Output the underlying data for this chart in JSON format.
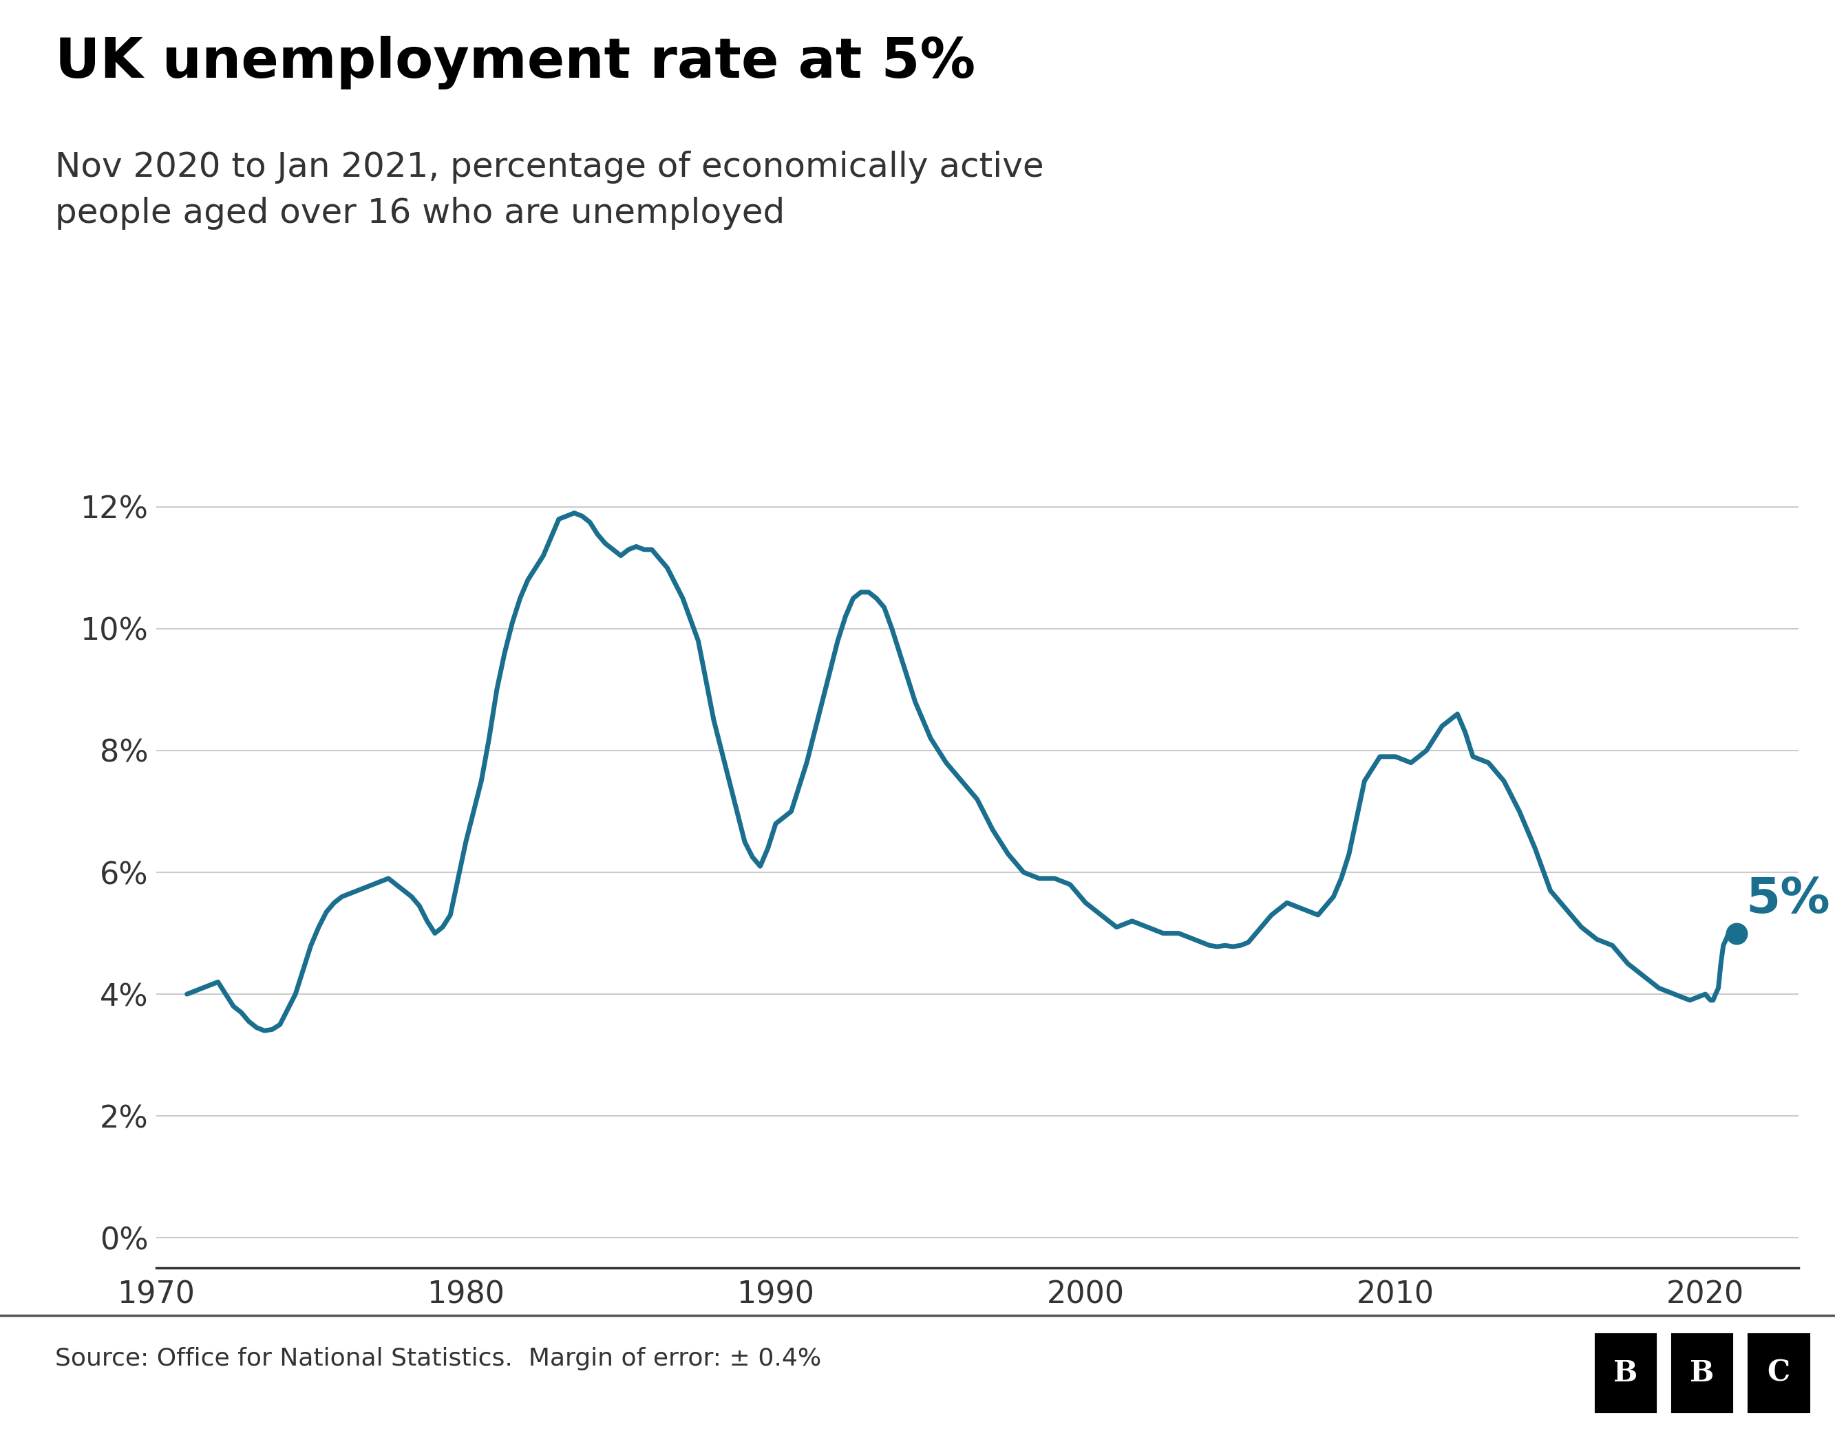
{
  "title": "UK unemployment rate at 5%",
  "subtitle": "Nov 2020 to Jan 2021, percentage of economically active\npeople aged over 16 who are unemployed",
  "source_text": "Source: Office for National Statistics.  Margin of error: ± 0.4%",
  "line_color": "#1a6e8e",
  "dot_color": "#1a6e8e",
  "annotation_color": "#1a6e8e",
  "annotation_text": "5%",
  "background_color": "#ffffff",
  "grid_color": "#cccccc",
  "title_fontsize": 58,
  "subtitle_fontsize": 36,
  "source_fontsize": 26,
  "annotation_fontsize": 52,
  "tick_fontsize": 32,
  "ylabel_ticks": [
    "0%",
    "2%",
    "4%",
    "6%",
    "8%",
    "10%",
    "12%"
  ],
  "ylabel_values": [
    0,
    2,
    4,
    6,
    8,
    10,
    12
  ],
  "xlabel_ticks": [
    "1970",
    "1980",
    "1990",
    "2000",
    "2010",
    "2020"
  ],
  "xlabel_values": [
    1970,
    1980,
    1990,
    2000,
    2010,
    2020
  ],
  "ylim": [
    -0.5,
    13.5
  ],
  "xlim": [
    1970,
    2023
  ],
  "line_width": 5.0,
  "data": [
    [
      1971.0,
      4.0
    ],
    [
      1971.25,
      4.05
    ],
    [
      1971.5,
      4.1
    ],
    [
      1971.75,
      4.15
    ],
    [
      1972.0,
      4.2
    ],
    [
      1972.25,
      4.0
    ],
    [
      1972.5,
      3.8
    ],
    [
      1972.75,
      3.7
    ],
    [
      1973.0,
      3.55
    ],
    [
      1973.25,
      3.45
    ],
    [
      1973.5,
      3.4
    ],
    [
      1973.75,
      3.42
    ],
    [
      1974.0,
      3.5
    ],
    [
      1974.25,
      3.75
    ],
    [
      1974.5,
      4.0
    ],
    [
      1974.75,
      4.4
    ],
    [
      1975.0,
      4.8
    ],
    [
      1975.25,
      5.1
    ],
    [
      1975.5,
      5.35
    ],
    [
      1975.75,
      5.5
    ],
    [
      1976.0,
      5.6
    ],
    [
      1976.25,
      5.65
    ],
    [
      1976.5,
      5.7
    ],
    [
      1976.75,
      5.75
    ],
    [
      1977.0,
      5.8
    ],
    [
      1977.25,
      5.85
    ],
    [
      1977.5,
      5.9
    ],
    [
      1977.75,
      5.8
    ],
    [
      1978.0,
      5.7
    ],
    [
      1978.25,
      5.6
    ],
    [
      1978.5,
      5.45
    ],
    [
      1978.75,
      5.2
    ],
    [
      1979.0,
      5.0
    ],
    [
      1979.25,
      5.1
    ],
    [
      1979.5,
      5.3
    ],
    [
      1979.75,
      5.9
    ],
    [
      1980.0,
      6.5
    ],
    [
      1980.25,
      7.0
    ],
    [
      1980.5,
      7.5
    ],
    [
      1980.75,
      8.2
    ],
    [
      1981.0,
      9.0
    ],
    [
      1981.25,
      9.6
    ],
    [
      1981.5,
      10.1
    ],
    [
      1981.75,
      10.5
    ],
    [
      1982.0,
      10.8
    ],
    [
      1982.25,
      11.0
    ],
    [
      1982.5,
      11.2
    ],
    [
      1982.75,
      11.5
    ],
    [
      1983.0,
      11.8
    ],
    [
      1983.25,
      11.85
    ],
    [
      1983.5,
      11.9
    ],
    [
      1983.75,
      11.85
    ],
    [
      1984.0,
      11.75
    ],
    [
      1984.25,
      11.55
    ],
    [
      1984.5,
      11.4
    ],
    [
      1984.75,
      11.3
    ],
    [
      1985.0,
      11.2
    ],
    [
      1985.25,
      11.3
    ],
    [
      1985.5,
      11.35
    ],
    [
      1985.75,
      11.3
    ],
    [
      1986.0,
      11.3
    ],
    [
      1986.25,
      11.15
    ],
    [
      1986.5,
      11.0
    ],
    [
      1986.75,
      10.75
    ],
    [
      1987.0,
      10.5
    ],
    [
      1987.25,
      10.15
    ],
    [
      1987.5,
      9.8
    ],
    [
      1987.75,
      9.15
    ],
    [
      1988.0,
      8.5
    ],
    [
      1988.25,
      8.0
    ],
    [
      1988.5,
      7.5
    ],
    [
      1988.75,
      7.0
    ],
    [
      1989.0,
      6.5
    ],
    [
      1989.25,
      6.25
    ],
    [
      1989.5,
      6.1
    ],
    [
      1989.75,
      6.4
    ],
    [
      1990.0,
      6.8
    ],
    [
      1990.25,
      6.9
    ],
    [
      1990.5,
      7.0
    ],
    [
      1990.75,
      7.4
    ],
    [
      1991.0,
      7.8
    ],
    [
      1991.25,
      8.3
    ],
    [
      1991.5,
      8.8
    ],
    [
      1991.75,
      9.3
    ],
    [
      1992.0,
      9.8
    ],
    [
      1992.25,
      10.2
    ],
    [
      1992.5,
      10.5
    ],
    [
      1992.75,
      10.6
    ],
    [
      1993.0,
      10.6
    ],
    [
      1993.25,
      10.5
    ],
    [
      1993.5,
      10.35
    ],
    [
      1993.75,
      10.0
    ],
    [
      1994.0,
      9.6
    ],
    [
      1994.25,
      9.2
    ],
    [
      1994.5,
      8.8
    ],
    [
      1994.75,
      8.5
    ],
    [
      1995.0,
      8.2
    ],
    [
      1995.25,
      8.0
    ],
    [
      1995.5,
      7.8
    ],
    [
      1995.75,
      7.65
    ],
    [
      1996.0,
      7.5
    ],
    [
      1996.25,
      7.35
    ],
    [
      1996.5,
      7.2
    ],
    [
      1996.75,
      6.95
    ],
    [
      1997.0,
      6.7
    ],
    [
      1997.25,
      6.5
    ],
    [
      1997.5,
      6.3
    ],
    [
      1997.75,
      6.15
    ],
    [
      1998.0,
      6.0
    ],
    [
      1998.25,
      5.95
    ],
    [
      1998.5,
      5.9
    ],
    [
      1998.75,
      5.9
    ],
    [
      1999.0,
      5.9
    ],
    [
      1999.25,
      5.85
    ],
    [
      1999.5,
      5.8
    ],
    [
      1999.75,
      5.65
    ],
    [
      2000.0,
      5.5
    ],
    [
      2000.25,
      5.4
    ],
    [
      2000.5,
      5.3
    ],
    [
      2000.75,
      5.2
    ],
    [
      2001.0,
      5.1
    ],
    [
      2001.25,
      5.15
    ],
    [
      2001.5,
      5.2
    ],
    [
      2001.75,
      5.15
    ],
    [
      2002.0,
      5.1
    ],
    [
      2002.25,
      5.05
    ],
    [
      2002.5,
      5.0
    ],
    [
      2002.75,
      5.0
    ],
    [
      2003.0,
      5.0
    ],
    [
      2003.25,
      4.95
    ],
    [
      2003.5,
      4.9
    ],
    [
      2003.75,
      4.85
    ],
    [
      2004.0,
      4.8
    ],
    [
      2004.25,
      4.78
    ],
    [
      2004.5,
      4.8
    ],
    [
      2004.75,
      4.78
    ],
    [
      2005.0,
      4.8
    ],
    [
      2005.25,
      4.85
    ],
    [
      2005.5,
      5.0
    ],
    [
      2005.75,
      5.15
    ],
    [
      2006.0,
      5.3
    ],
    [
      2006.25,
      5.4
    ],
    [
      2006.5,
      5.5
    ],
    [
      2006.75,
      5.45
    ],
    [
      2007.0,
      5.4
    ],
    [
      2007.25,
      5.35
    ],
    [
      2007.5,
      5.3
    ],
    [
      2007.75,
      5.45
    ],
    [
      2008.0,
      5.6
    ],
    [
      2008.25,
      5.9
    ],
    [
      2008.5,
      6.3
    ],
    [
      2008.75,
      6.9
    ],
    [
      2009.0,
      7.5
    ],
    [
      2009.25,
      7.7
    ],
    [
      2009.5,
      7.9
    ],
    [
      2009.75,
      7.9
    ],
    [
      2010.0,
      7.9
    ],
    [
      2010.25,
      7.85
    ],
    [
      2010.5,
      7.8
    ],
    [
      2010.75,
      7.9
    ],
    [
      2011.0,
      8.0
    ],
    [
      2011.25,
      8.2
    ],
    [
      2011.5,
      8.4
    ],
    [
      2011.75,
      8.5
    ],
    [
      2012.0,
      8.6
    ],
    [
      2012.25,
      8.3
    ],
    [
      2012.5,
      7.9
    ],
    [
      2012.75,
      7.85
    ],
    [
      2013.0,
      7.8
    ],
    [
      2013.25,
      7.65
    ],
    [
      2013.5,
      7.5
    ],
    [
      2013.75,
      7.25
    ],
    [
      2014.0,
      7.0
    ],
    [
      2014.25,
      6.7
    ],
    [
      2014.5,
      6.4
    ],
    [
      2014.75,
      6.05
    ],
    [
      2015.0,
      5.7
    ],
    [
      2015.25,
      5.55
    ],
    [
      2015.5,
      5.4
    ],
    [
      2015.75,
      5.25
    ],
    [
      2016.0,
      5.1
    ],
    [
      2016.25,
      5.0
    ],
    [
      2016.5,
      4.9
    ],
    [
      2016.75,
      4.85
    ],
    [
      2017.0,
      4.8
    ],
    [
      2017.25,
      4.65
    ],
    [
      2017.5,
      4.5
    ],
    [
      2017.75,
      4.4
    ],
    [
      2018.0,
      4.3
    ],
    [
      2018.25,
      4.2
    ],
    [
      2018.5,
      4.1
    ],
    [
      2018.75,
      4.05
    ],
    [
      2019.0,
      4.0
    ],
    [
      2019.25,
      3.95
    ],
    [
      2019.5,
      3.9
    ],
    [
      2019.75,
      3.95
    ],
    [
      2020.0,
      4.0
    ],
    [
      2020.08,
      3.95
    ],
    [
      2020.17,
      3.9
    ],
    [
      2020.25,
      3.9
    ],
    [
      2020.33,
      4.0
    ],
    [
      2020.42,
      4.1
    ],
    [
      2020.5,
      4.5
    ],
    [
      2020.58,
      4.8
    ],
    [
      2020.67,
      4.9
    ],
    [
      2020.75,
      5.0
    ],
    [
      2020.83,
      5.0
    ],
    [
      2021.0,
      5.0
    ]
  ],
  "final_point": [
    2021.0,
    5.0
  ]
}
